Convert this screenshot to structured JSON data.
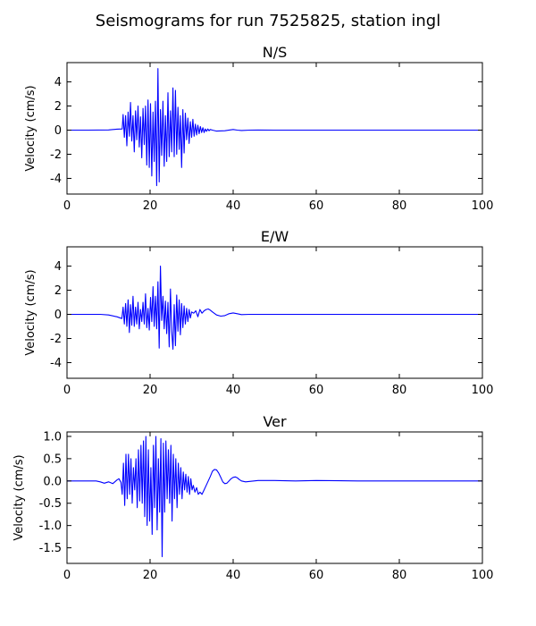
{
  "figure_title": "Seismograms for run 7525825, station ingl",
  "chart_data": [
    {
      "type": "line",
      "title": "N/S",
      "xlabel": "",
      "ylabel": "Velocity (cm/s)",
      "xlim": [
        0,
        100
      ],
      "ylim": [
        -5.3,
        5.6
      ],
      "xticks": [
        0,
        20,
        40,
        60,
        80,
        100
      ],
      "yticks": [
        -4,
        -2,
        0,
        2,
        4
      ],
      "grid": false,
      "color": "#0000ff",
      "x": [
        0,
        5,
        10,
        12,
        13.3,
        13.5,
        13.8,
        14.1,
        14.4,
        14.7,
        15.0,
        15.3,
        15.6,
        15.9,
        16.2,
        16.5,
        16.8,
        17.1,
        17.4,
        17.7,
        18.0,
        18.3,
        18.6,
        18.9,
        19.2,
        19.5,
        19.8,
        20.1,
        20.4,
        20.7,
        21.0,
        21.3,
        21.6,
        21.9,
        22.2,
        22.5,
        22.8,
        23.1,
        23.4,
        23.7,
        24.0,
        24.3,
        24.6,
        24.9,
        25.2,
        25.5,
        25.8,
        26.1,
        26.4,
        26.7,
        27.0,
        27.3,
        27.6,
        27.9,
        28.2,
        28.5,
        28.8,
        29.1,
        29.4,
        29.7,
        30.0,
        30.3,
        30.6,
        30.9,
        31.2,
        31.5,
        31.8,
        32.1,
        32.4,
        32.7,
        33.0,
        33.3,
        33.6,
        33.9,
        34.2,
        34.5,
        35,
        36,
        38,
        40,
        41,
        42,
        44,
        46,
        50,
        60,
        70,
        80,
        90,
        100
      ],
      "y": [
        0,
        0,
        0.02,
        0.08,
        0.1,
        1.3,
        -0.6,
        1.2,
        -1.3,
        1.5,
        -0.5,
        2.3,
        -0.9,
        1.2,
        -1.8,
        1.6,
        -0.8,
        2.0,
        -1.4,
        1.1,
        -2.3,
        1.8,
        -1.2,
        2.0,
        -2.9,
        2.5,
        -3.1,
        2.2,
        -3.8,
        1.5,
        -2.6,
        2.4,
        -4.6,
        5.1,
        -4.3,
        1.7,
        -2.1,
        2.4,
        -3.0,
        1.2,
        -2.6,
        3.1,
        -2.2,
        1.6,
        -1.8,
        3.5,
        -2.2,
        3.3,
        -2.0,
        1.9,
        -1.6,
        1.2,
        -3.1,
        1.7,
        -1.9,
        1.4,
        -0.8,
        1.0,
        -1.1,
        0.7,
        -0.6,
        0.9,
        -0.5,
        0.5,
        -0.4,
        0.4,
        -0.3,
        0.3,
        -0.2,
        0.2,
        -0.2,
        0.1,
        -0.1,
        0.1,
        -0.05,
        0.05,
        0,
        -0.08,
        -0.05,
        0.05,
        0.0,
        -0.03,
        0,
        0.01,
        0,
        0,
        0,
        0,
        0,
        0
      ]
    },
    {
      "type": "line",
      "title": "E/W",
      "xlabel": "",
      "ylabel": "Velocity (cm/s)",
      "xlim": [
        0,
        100
      ],
      "ylim": [
        -5.3,
        5.6
      ],
      "xticks": [
        0,
        20,
        40,
        60,
        80,
        100
      ],
      "yticks": [
        -4,
        -2,
        0,
        2,
        4
      ],
      "grid": false,
      "color": "#0000ff",
      "x": [
        0,
        5,
        8,
        10,
        12,
        13.2,
        13.5,
        13.8,
        14.1,
        14.4,
        14.7,
        15.0,
        15.3,
        15.6,
        15.9,
        16.2,
        16.5,
        16.8,
        17.1,
        17.4,
        17.7,
        18.0,
        18.3,
        18.6,
        18.9,
        19.2,
        19.5,
        19.8,
        20.1,
        20.4,
        20.7,
        21.0,
        21.3,
        21.6,
        21.9,
        22.2,
        22.5,
        22.8,
        23.1,
        23.4,
        23.7,
        24.0,
        24.3,
        24.6,
        24.9,
        25.2,
        25.5,
        25.8,
        26.1,
        26.4,
        26.7,
        27.0,
        27.3,
        27.6,
        27.9,
        28.2,
        28.5,
        28.8,
        29.1,
        29.4,
        29.7,
        30.0,
        30.5,
        31.0,
        31.5,
        32.0,
        32.5,
        33.0,
        33.5,
        34.0,
        34.5,
        35.0,
        36,
        37,
        38,
        39,
        40,
        41,
        42,
        44,
        46,
        50,
        60,
        70,
        80,
        90,
        100
      ],
      "y": [
        0,
        0,
        0,
        -0.05,
        -0.2,
        -0.35,
        0.6,
        -0.8,
        0.9,
        -1.0,
        1.2,
        -1.5,
        0.8,
        -0.9,
        1.5,
        -1.0,
        0.6,
        -0.8,
        1.0,
        -1.2,
        0.4,
        -0.6,
        1.0,
        -0.8,
        1.7,
        -1.1,
        0.5,
        -1.3,
        1.4,
        -0.6,
        2.3,
        -1.0,
        1.5,
        -1.2,
        2.7,
        -2.8,
        4.0,
        -0.5,
        1.5,
        -1.2,
        1.1,
        -1.6,
        1.0,
        -2.7,
        2.1,
        -1.4,
        -2.9,
        0.8,
        -2.6,
        1.6,
        -1.4,
        1.2,
        -1.7,
        0.9,
        -1.1,
        0.7,
        -0.8,
        0.5,
        -0.6,
        0.4,
        -0.3,
        0.2,
        0.1,
        0.3,
        -0.2,
        0.4,
        0.1,
        0.3,
        0.4,
        0.45,
        0.35,
        0.2,
        -0.05,
        -0.15,
        -0.1,
        0.05,
        0.12,
        0.05,
        -0.02,
        0,
        0,
        0,
        0,
        0,
        0,
        0,
        0
      ]
    },
    {
      "type": "line",
      "title": "Ver",
      "xlabel": "",
      "ylabel": "Velocity (cm/s)",
      "xlim": [
        0,
        100
      ],
      "ylim": [
        -1.85,
        1.1
      ],
      "xticks": [
        0,
        20,
        40,
        60,
        80,
        100
      ],
      "yticks": [
        -1.5,
        -1.0,
        -0.5,
        0.0,
        0.5,
        1.0
      ],
      "grid": false,
      "color": "#0000ff",
      "x": [
        0,
        5,
        7,
        8,
        9,
        10,
        11,
        12,
        12.5,
        13,
        13.3,
        13.6,
        13.9,
        14.2,
        14.5,
        14.8,
        15.1,
        15.4,
        15.7,
        16.0,
        16.3,
        16.6,
        16.9,
        17.2,
        17.5,
        17.8,
        18.1,
        18.4,
        18.7,
        19.0,
        19.3,
        19.6,
        19.9,
        20.2,
        20.5,
        20.8,
        21.1,
        21.4,
        21.7,
        22.0,
        22.3,
        22.6,
        22.9,
        23.2,
        23.5,
        23.8,
        24.1,
        24.4,
        24.7,
        25.0,
        25.3,
        25.6,
        25.9,
        26.2,
        26.5,
        26.8,
        27.1,
        27.4,
        27.7,
        28.0,
        28.3,
        28.6,
        28.9,
        29.2,
        29.5,
        29.8,
        30.1,
        30.4,
        30.8,
        31.2,
        31.6,
        32.0,
        32.5,
        33.0,
        33.5,
        34.0,
        34.5,
        35.0,
        35.5,
        36.0,
        36.5,
        37.0,
        37.5,
        38.0,
        38.5,
        39.0,
        39.5,
        40.0,
        40.5,
        41.0,
        41.5,
        42,
        43,
        44,
        46,
        50,
        55,
        60,
        70,
        80,
        90,
        100
      ],
      "y": [
        0,
        0,
        0,
        -0.02,
        -0.05,
        -0.02,
        -0.06,
        0.02,
        0.05,
        -0.03,
        -0.3,
        0.4,
        -0.55,
        0.6,
        -0.4,
        0.6,
        -0.3,
        0.5,
        -0.5,
        0.3,
        -0.2,
        0.5,
        -0.6,
        0.7,
        -0.45,
        0.8,
        -0.5,
        0.9,
        -0.8,
        1.0,
        -1.0,
        0.7,
        -0.9,
        0.3,
        -1.2,
        0.8,
        -0.6,
        1.0,
        -1.1,
        0.5,
        -0.7,
        0.95,
        -1.7,
        0.85,
        -0.7,
        0.9,
        -0.4,
        0.7,
        -0.5,
        0.8,
        -0.9,
        0.6,
        -0.4,
        0.5,
        -0.6,
        0.4,
        -0.3,
        0.3,
        -0.4,
        0.2,
        -0.2,
        0.15,
        -0.25,
        0.1,
        -0.3,
        0.05,
        -0.2,
        -0.1,
        -0.25,
        -0.15,
        -0.3,
        -0.25,
        -0.3,
        -0.2,
        -0.1,
        0.0,
        0.1,
        0.22,
        0.26,
        0.25,
        0.18,
        0.08,
        -0.02,
        -0.06,
        -0.05,
        0.0,
        0.05,
        0.08,
        0.09,
        0.07,
        0.03,
        0.0,
        -0.02,
        -0.01,
        0.01,
        0.01,
        0.0,
        0.01,
        0.0,
        0.0,
        0.0,
        0.0
      ]
    }
  ]
}
